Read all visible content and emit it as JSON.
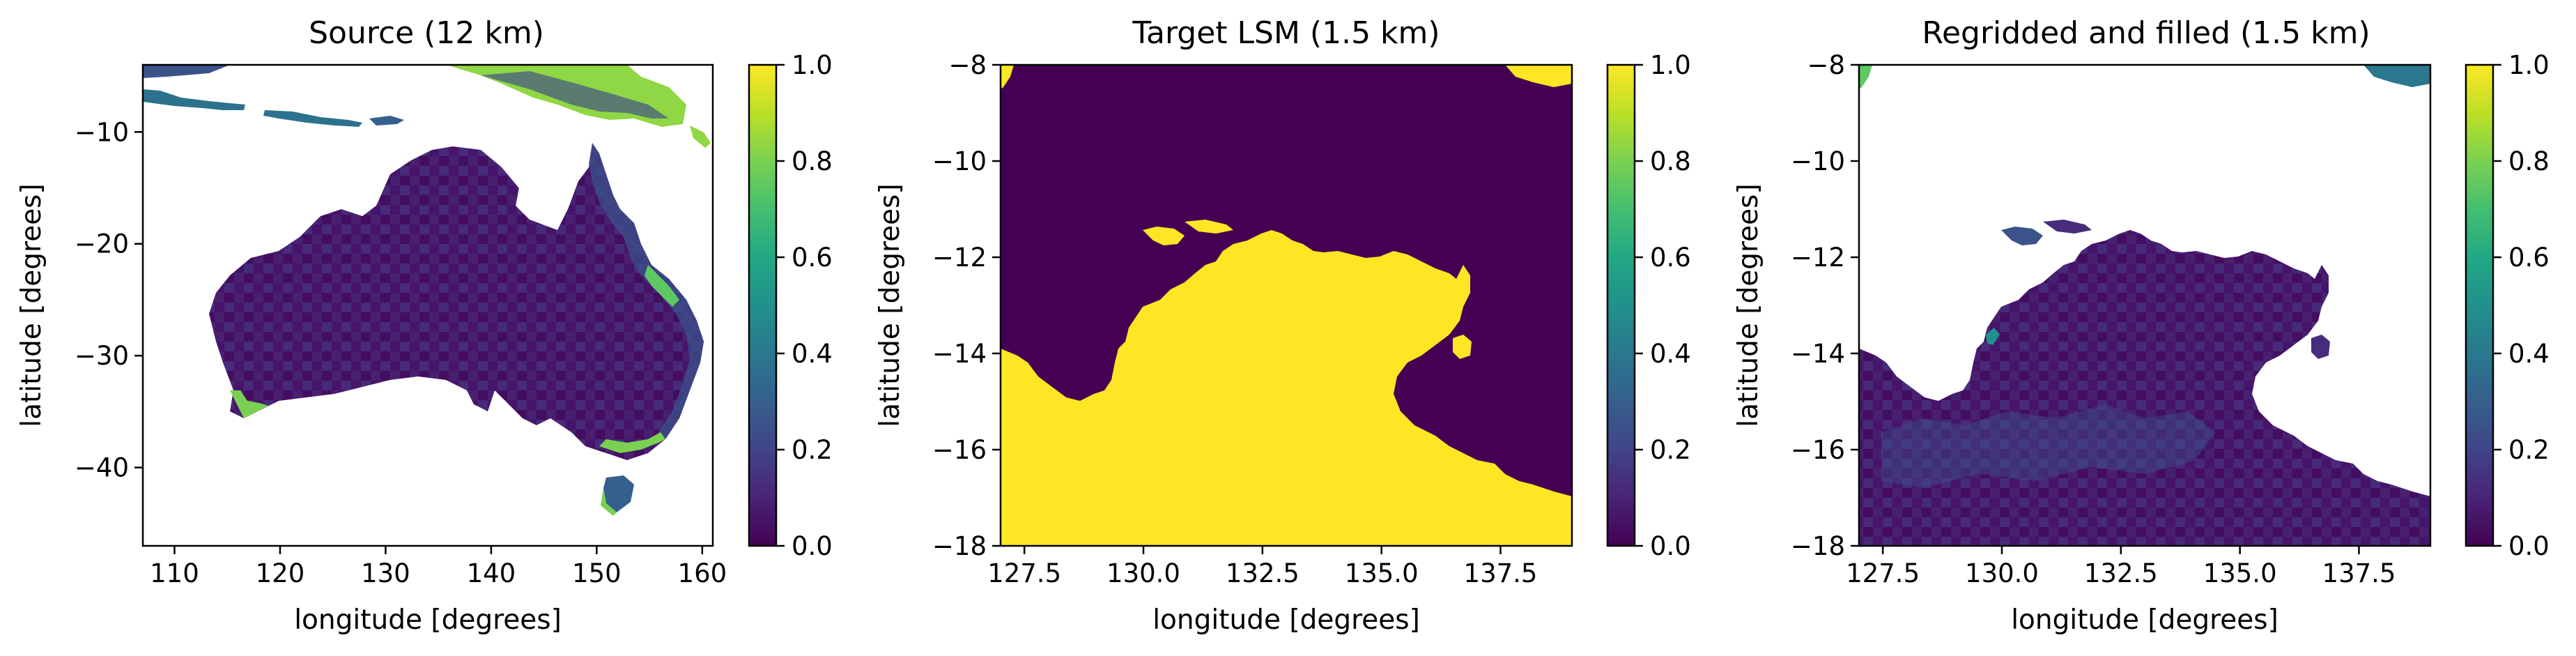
{
  "colors": {
    "viridis": [
      "#440154",
      "#482475",
      "#414487",
      "#355f8d",
      "#2a788e",
      "#21918c",
      "#22a884",
      "#44bf70",
      "#7ad151",
      "#bddf26",
      "#fde725"
    ],
    "land_low": "#440154",
    "land_mid": "#472d7b",
    "water": "#440154",
    "land_target": "#fde725",
    "coast_green": "#5ec962",
    "coast_teal": "#2a788e"
  },
  "chart_data": [
    {
      "type": "heatmap",
      "title": "Source (12 km)",
      "xlabel": "longitude [degrees]",
      "ylabel": "latitude [degrees]",
      "xlim": [
        107,
        161
      ],
      "ylim": [
        -47,
        -4
      ],
      "xticks": [
        110,
        120,
        130,
        140,
        150,
        160
      ],
      "xtick_labels": [
        "110",
        "120",
        "130",
        "140",
        "150",
        "160"
      ],
      "yticks": [
        -10,
        -20,
        -30,
        -40
      ],
      "ytick_labels": [
        "−10",
        "−20",
        "−30",
        "−40"
      ],
      "colorbar": {
        "min": 0.0,
        "max": 1.0,
        "ticks": [
          0.0,
          0.2,
          0.4,
          0.6,
          0.8,
          1.0
        ],
        "tick_labels": [
          "0.0",
          "0.2",
          "0.4",
          "0.6",
          "0.8",
          "1.0"
        ]
      },
      "map": "australia",
      "grid": false
    },
    {
      "type": "heatmap",
      "title": "Target LSM (1.5 km)",
      "xlabel": "longitude [degrees]",
      "ylabel": "latitude [degrees]",
      "xlim": [
        127.0,
        139.0
      ],
      "ylim": [
        -18,
        -8
      ],
      "xticks": [
        127.5,
        130.0,
        132.5,
        135.0,
        137.5
      ],
      "xtick_labels": [
        "127.5",
        "130.0",
        "132.5",
        "135.0",
        "137.5"
      ],
      "yticks": [
        -8,
        -10,
        -12,
        -14,
        -16,
        -18
      ],
      "ytick_labels": [
        "−8",
        "−10",
        "−12",
        "−14",
        "−16",
        "−18"
      ],
      "colorbar": {
        "min": 0.0,
        "max": 1.0,
        "ticks": [
          0.0,
          0.2,
          0.4,
          0.6,
          0.8,
          1.0
        ],
        "tick_labels": [
          "0.0",
          "0.2",
          "0.4",
          "0.6",
          "0.8",
          "1.0"
        ]
      },
      "map": "north-australia-mask",
      "grid": false
    },
    {
      "type": "heatmap",
      "title": "Regridded and filled (1.5 km)",
      "xlabel": "longitude [degrees]",
      "ylabel": "latitude [degrees]",
      "xlim": [
        127.0,
        139.0
      ],
      "ylim": [
        -18,
        -8
      ],
      "xticks": [
        127.5,
        130.0,
        132.5,
        135.0,
        137.5
      ],
      "xtick_labels": [
        "127.5",
        "130.0",
        "132.5",
        "135.0",
        "137.5"
      ],
      "yticks": [
        -8,
        -10,
        -12,
        -14,
        -16,
        -18
      ],
      "ytick_labels": [
        "−8",
        "−10",
        "−12",
        "−14",
        "−16",
        "−18"
      ],
      "colorbar": {
        "min": 0.0,
        "max": 1.0,
        "ticks": [
          0.0,
          0.2,
          0.4,
          0.6,
          0.8,
          1.0
        ],
        "tick_labels": [
          "0.0",
          "0.2",
          "0.4",
          "0.6",
          "0.8",
          "1.0"
        ]
      },
      "map": "north-australia-filled",
      "grid": false
    }
  ]
}
